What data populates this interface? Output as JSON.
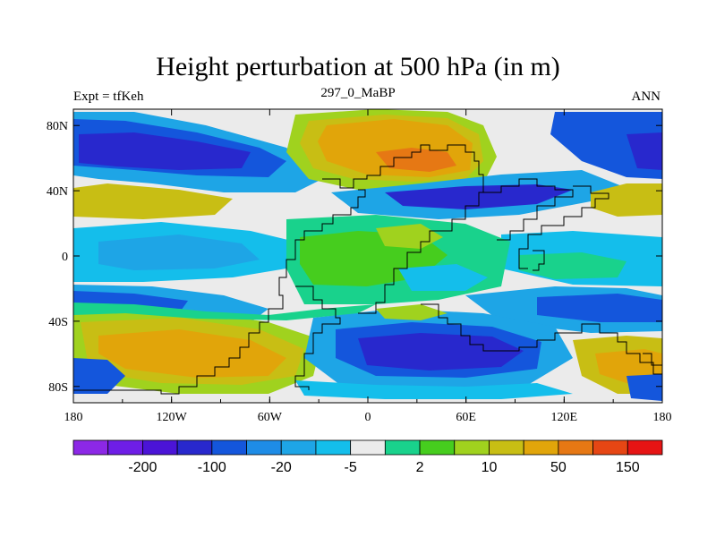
{
  "header": {
    "title": "Height perturbation at 500 hPa (in m)",
    "left": "Expt = tfKeh",
    "center": "297_0_MaBP",
    "right": "ANN"
  },
  "map": {
    "x_ticks": [
      "180",
      "120W",
      "60W",
      "0",
      "60E",
      "120E",
      "180"
    ],
    "y_ticks": [
      "80N",
      "40N",
      "0",
      "40S",
      "80S"
    ],
    "lon_range": [
      -180,
      180
    ],
    "lat_range": [
      -90,
      90
    ]
  },
  "colorbar": {
    "colors": [
      "#8c28e6",
      "#6e1ee6",
      "#4b14d7",
      "#2828cd",
      "#1456dc",
      "#1e8ce6",
      "#1ea5e6",
      "#14beeb",
      "#ebebeb",
      "#19d28c",
      "#46cd1e",
      "#a0d21e",
      "#c8be14",
      "#e1a50a",
      "#e67814",
      "#e64614",
      "#e61414"
    ],
    "labels": [
      "-200",
      "-100",
      "-20",
      "-5",
      "2",
      "10",
      "50",
      "150"
    ]
  },
  "colors": {
    "background": "#ebebeb",
    "negative_strong": "#2828cd",
    "positive_strong": "#e1a50a",
    "coast": "#000000"
  }
}
